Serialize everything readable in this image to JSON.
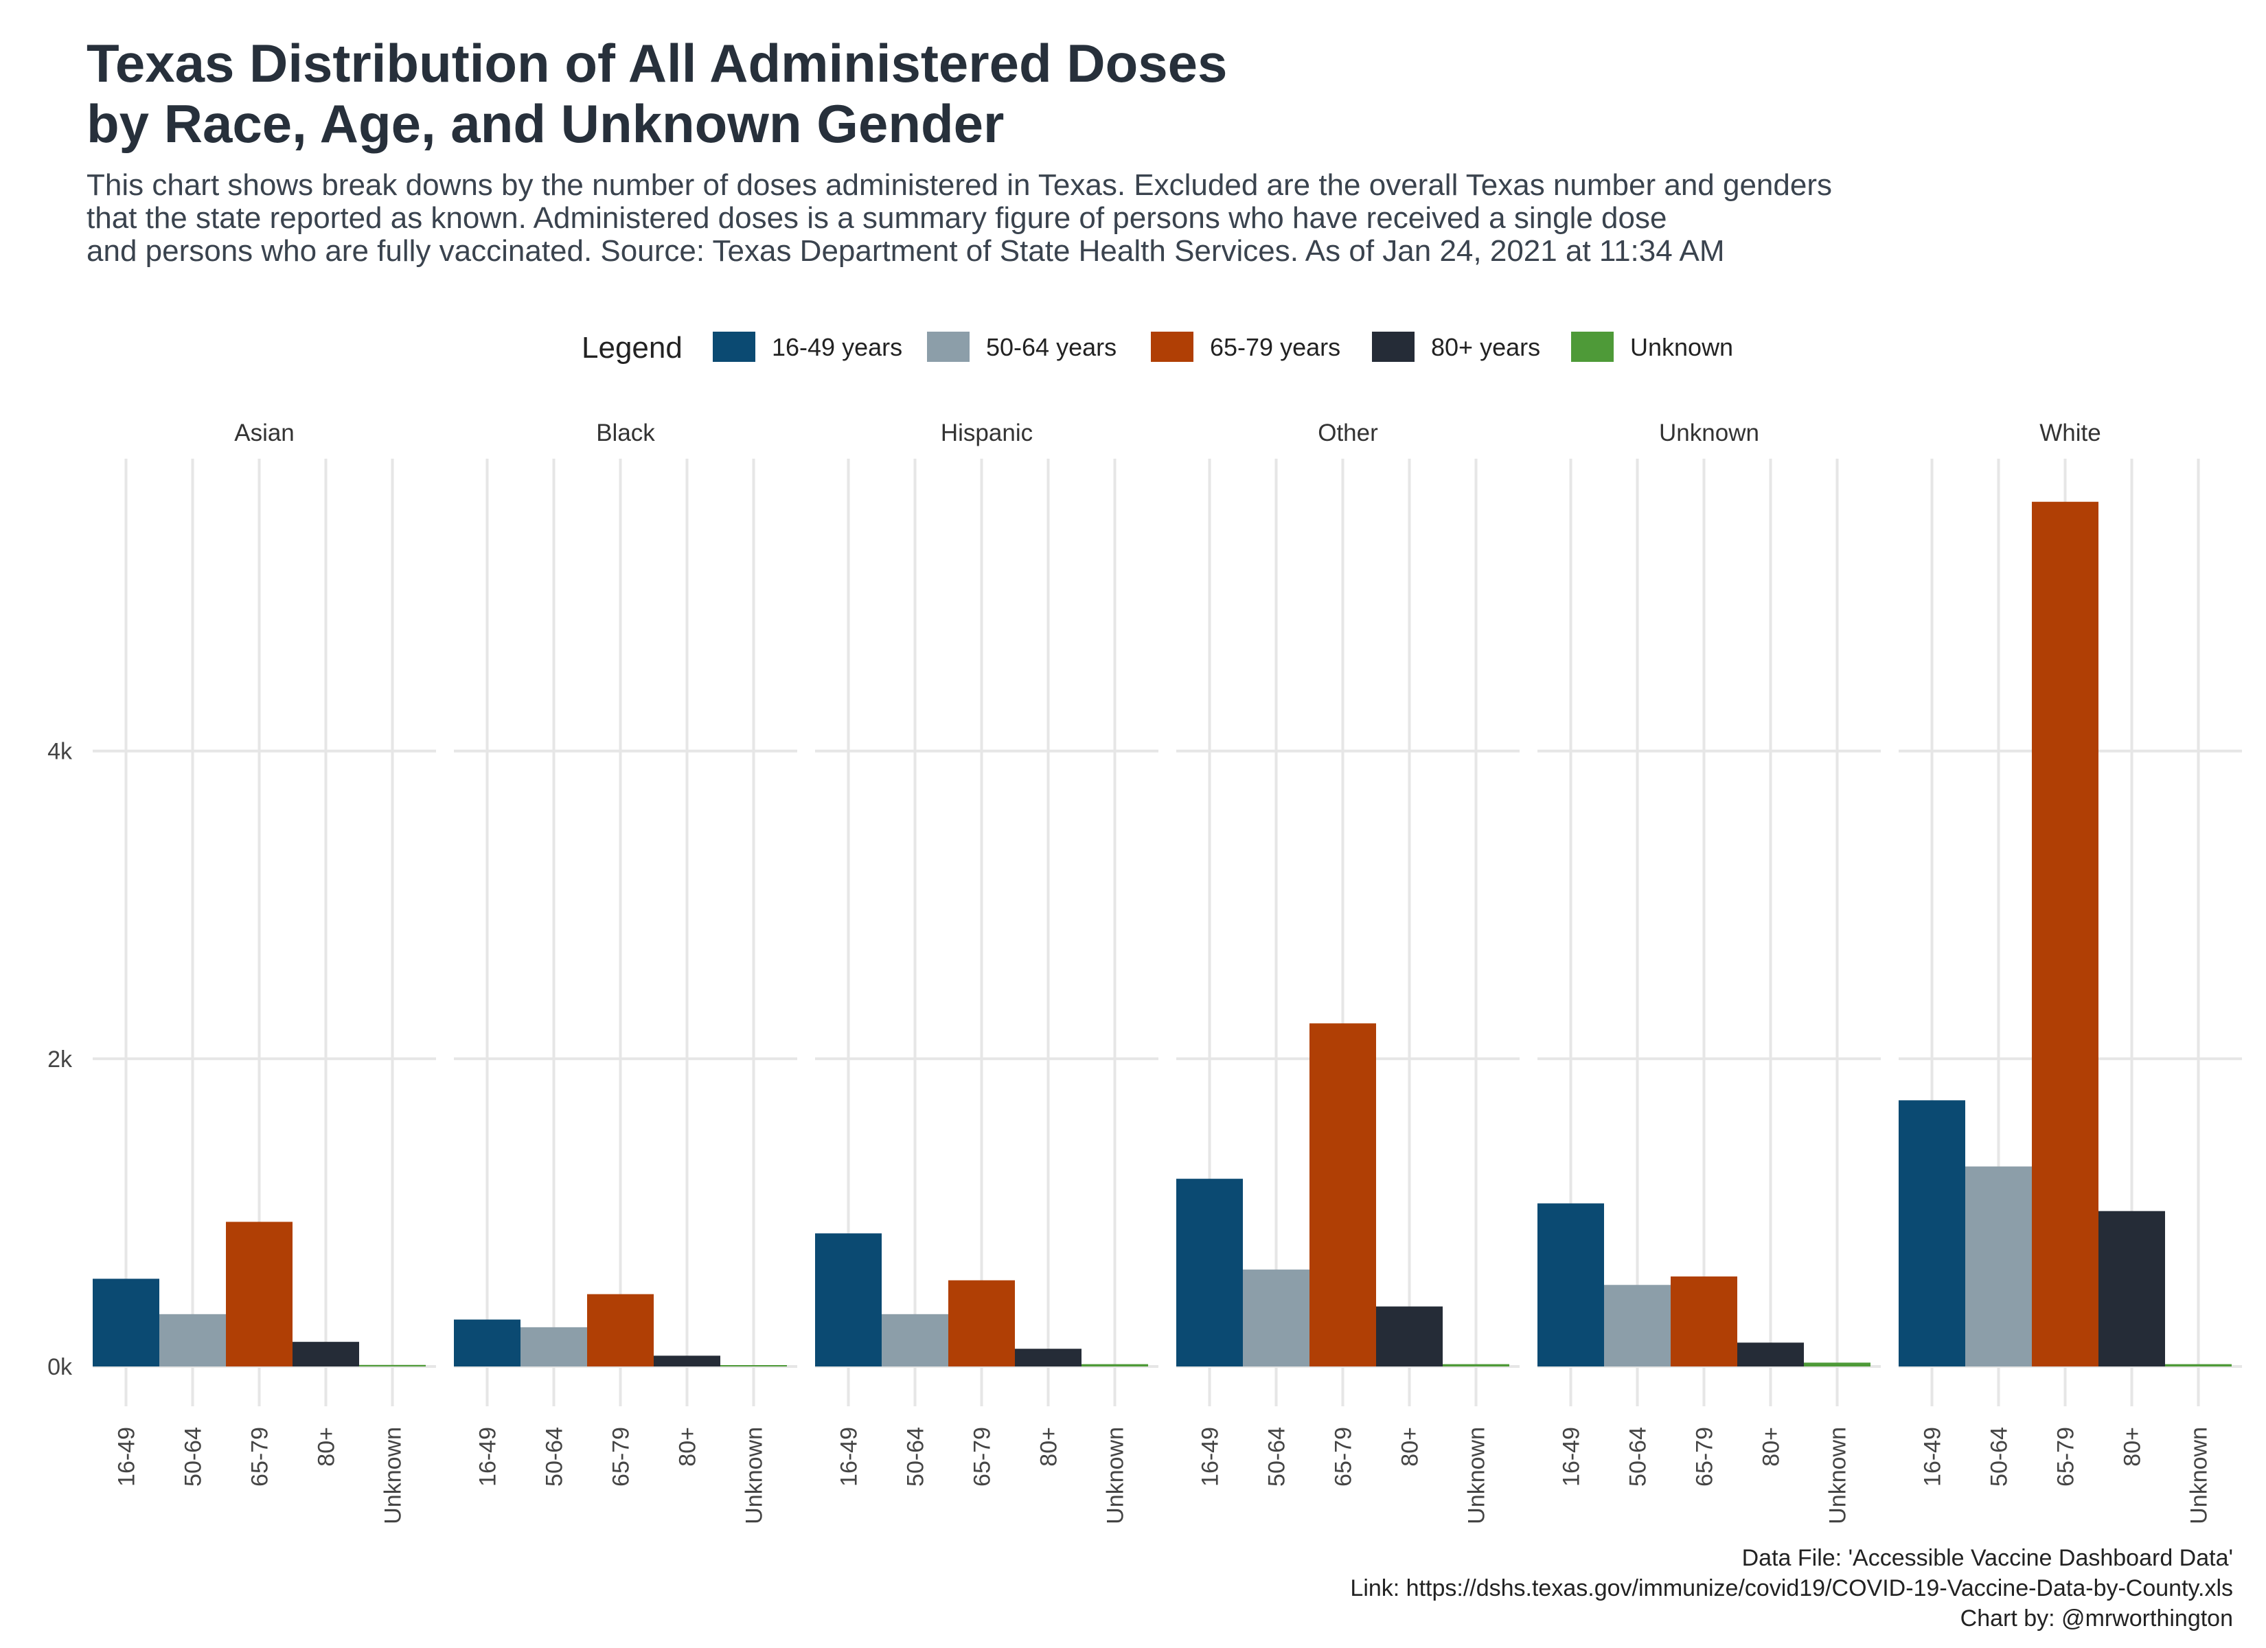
{
  "title_line1": "Texas Distribution of All Administered Doses",
  "title_line2": "by Race, Age, and Unknown Gender",
  "subtitle_lines": [
    "This chart shows break downs by the number of doses administered in Texas. Excluded are the overall Texas number and genders",
    "that the state reported as known. Administered doses is a summary figure of persons who have received a single dose",
    "and persons who are fully vaccinated. Source: Texas Department of State Health Services. As of Jan 24, 2021 at 11:34 AM"
  ],
  "caption": {
    "line1": "Data File: 'Accessible Vaccine Dashboard Data'",
    "line2": "Link: https://dshs.texas.gov/immunize/covid19/COVID-19-Vaccine-Data-by-County.xls",
    "line3": "Chart by: @mrworthington"
  },
  "colors": {
    "16-49": "#0b4a72",
    "50-64": "#8c9ea9",
    "65-79": "#b03f05",
    "80+": "#252c37",
    "Unknown": "#4e9a38",
    "grid": "#e6e6e6"
  },
  "chart_data": {
    "type": "bar",
    "facet_by": "Race",
    "legend_title": "Legend",
    "legend_position": "top",
    "legend_entries": [
      "16-49 years",
      "50-64 years",
      "65-79 years",
      "80+ years",
      "Unknown"
    ],
    "categories": [
      "16-49",
      "50-64",
      "65-79",
      "80+",
      "Unknown"
    ],
    "yticks": [
      0,
      2000,
      4000
    ],
    "ytick_labels": [
      "0k",
      "2k",
      "4k"
    ],
    "ylim": [
      0,
      5900
    ],
    "grid": true,
    "facets": [
      {
        "name": "Asian",
        "values": [
          570,
          340,
          940,
          160,
          10
        ]
      },
      {
        "name": "Black",
        "values": [
          305,
          255,
          470,
          70,
          5
        ]
      },
      {
        "name": "Hispanic",
        "values": [
          865,
          340,
          560,
          115,
          15
        ]
      },
      {
        "name": "Other",
        "values": [
          1220,
          630,
          2230,
          390,
          15
        ]
      },
      {
        "name": "Unknown",
        "values": [
          1060,
          530,
          585,
          155,
          25
        ]
      },
      {
        "name": "White",
        "values": [
          1730,
          1300,
          5620,
          1010,
          15
        ]
      }
    ]
  }
}
